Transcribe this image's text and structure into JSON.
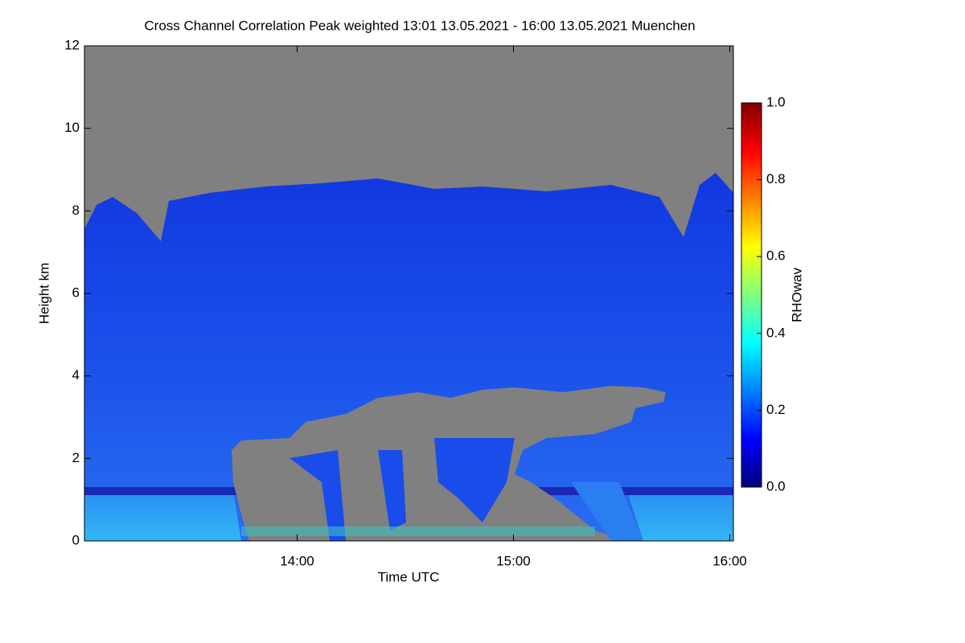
{
  "chart_data": {
    "type": "heatmap",
    "title": "Cross Channel Correlation Peak weighted   13:01 13.05.2021 - 16:00 13.05.2021 Muenchen",
    "x_label": "Time UTC",
    "y_label": "Height km",
    "colorbar_label": "RHOwav",
    "xlim": [
      13.0167,
      16.0167
    ],
    "xticks": [
      {
        "value": 14,
        "label": "14:00"
      },
      {
        "value": 15,
        "label": "15:00"
      },
      {
        "value": 16,
        "label": "16:00"
      }
    ],
    "ylim": [
      0,
      12
    ],
    "yticks": [
      0,
      2,
      4,
      6,
      8,
      10,
      12
    ],
    "clim": [
      0,
      1
    ],
    "cticks": [
      {
        "value": 0,
        "label": "0.0"
      },
      {
        "value": 0.2,
        "label": "0.2"
      },
      {
        "value": 0.4,
        "label": "0.4"
      },
      {
        "value": 0.6,
        "label": "0.6"
      },
      {
        "value": 0.8,
        "label": "0.8"
      },
      {
        "value": 1,
        "label": "1.0"
      }
    ],
    "colormap": [
      "#00007f",
      "#0000ff",
      "#0080ff",
      "#00ffff",
      "#80ff80",
      "#ffff00",
      "#ff8000",
      "#ff0000",
      "#7f0000"
    ],
    "missing_color": "#808080"
  }
}
